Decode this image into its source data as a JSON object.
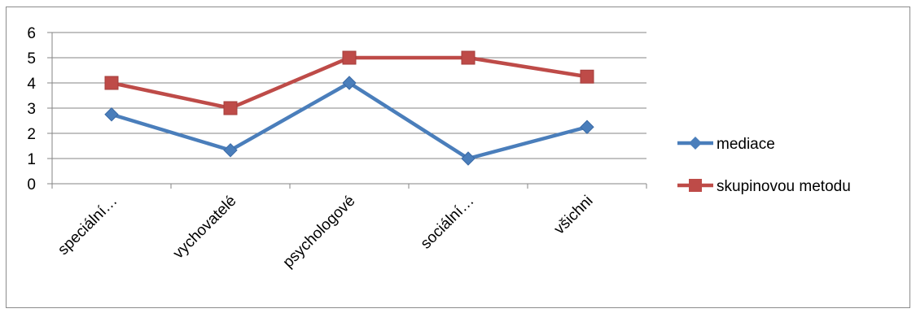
{
  "chart_data": {
    "type": "line",
    "categories": [
      "speciální…",
      "vychovatelé",
      "psychologové",
      "sociální…",
      "všichni"
    ],
    "series": [
      {
        "name": "mediace",
        "color": "#4a7ebb",
        "marker": "diamond",
        "values": [
          2.75,
          1.33,
          4.0,
          1.0,
          2.25
        ]
      },
      {
        "name": "skupinovou metodu",
        "color": "#be4b48",
        "marker": "square",
        "values": [
          4.0,
          3.0,
          5.0,
          5.0,
          4.25
        ]
      }
    ],
    "ylim": [
      0,
      6
    ],
    "yticks": [
      "0",
      "1",
      "2",
      "3",
      "4",
      "5",
      "6"
    ],
    "grid": true,
    "legend": "right"
  }
}
